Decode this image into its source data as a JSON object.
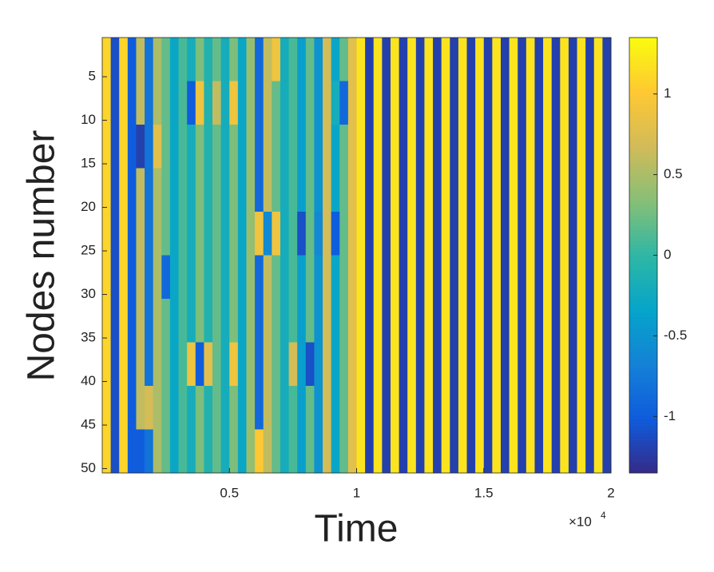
{
  "chart_data": {
    "type": "heatmap",
    "x_label": "Time",
    "y_label": "Nodes number",
    "xlim": [
      0,
      20000
    ],
    "ylim": [
      0.5,
      50.5
    ],
    "xticks": [
      {
        "value": 5000,
        "label": "0.5"
      },
      {
        "value": 10000,
        "label": "1"
      },
      {
        "value": 15000,
        "label": "1.5"
      },
      {
        "value": 20000,
        "label": "2"
      }
    ],
    "x_multiplier": "×10",
    "x_exponent": "4",
    "yticks": [
      5,
      10,
      15,
      20,
      25,
      30,
      35,
      40,
      45,
      50
    ],
    "clim": [
      -1.35,
      1.35
    ],
    "cticks": [
      -1,
      -0.5,
      0,
      0.5,
      1
    ],
    "colormap": [
      "#352a87",
      "#0f5cdd",
      "#1481d6",
      "#06a4ca",
      "#2eb7a4",
      "#87bf77",
      "#d1bb59",
      "#fec832",
      "#f9fb0e"
    ],
    "z": [
      [
        1.1,
        -1.1,
        1.1,
        -1.0,
        0.6,
        -0.8,
        0.5,
        0.2,
        -0.3,
        0.1,
        -0.2,
        0.3,
        -0.1,
        0.2,
        -0.2,
        0.3,
        -0.3,
        0.4,
        -0.9,
        0.6,
        0.9,
        -0.2,
        0.1,
        -0.4,
        0.2,
        -0.5,
        0.7,
        -0.3,
        0.2,
        0.8,
        1.2,
        -1.2,
        1.2,
        -1.2,
        1.2,
        -1.2,
        1.2,
        -1.2,
        1.2,
        -1.2,
        1.2,
        -1.2,
        1.2,
        -1.2,
        1.2,
        -1.2,
        1.2,
        -1.2,
        1.2,
        -1.2,
        1.2,
        -1.2,
        1.2,
        -1.2,
        1.2,
        -1.2,
        1.2,
        -1.2,
        1.2,
        -1.2
      ],
      [
        1.1,
        -1.1,
        1.1,
        -1.0,
        0.6,
        -0.8,
        0.5,
        0.2,
        -0.3,
        0.1,
        -1.0,
        0.9,
        -0.1,
        0.6,
        -0.2,
        0.9,
        -0.3,
        0.4,
        -0.9,
        0.6,
        0.2,
        -0.2,
        0.1,
        -0.4,
        0.2,
        -0.5,
        0.7,
        -0.2,
        -0.9,
        0.8,
        1.2,
        -1.2,
        1.2,
        -1.2,
        1.2,
        -1.2,
        1.2,
        -1.2,
        1.2,
        -1.2,
        1.2,
        -1.2,
        1.2,
        -1.2,
        1.2,
        -1.2,
        1.2,
        -1.2,
        1.2,
        -1.2,
        1.2,
        -1.2,
        1.2,
        -1.2,
        1.2,
        -1.2,
        1.2,
        -1.2,
        1.2,
        -1.2
      ],
      [
        1.1,
        -1.1,
        1.1,
        -1.0,
        -1.2,
        -0.8,
        0.8,
        0.2,
        -0.3,
        0.1,
        -0.2,
        0.3,
        -0.1,
        0.2,
        -0.2,
        0.3,
        -0.3,
        0.4,
        -0.9,
        0.6,
        0.2,
        -0.2,
        0.1,
        -0.4,
        0.2,
        -0.5,
        0.7,
        -0.3,
        0.2,
        0.8,
        1.2,
        -1.2,
        1.2,
        -1.2,
        1.2,
        -1.2,
        1.2,
        -1.2,
        1.2,
        -1.2,
        1.2,
        -1.2,
        1.2,
        -1.2,
        1.2,
        -1.2,
        1.2,
        -1.2,
        1.2,
        -1.2,
        1.2,
        -1.2,
        1.2,
        -1.2,
        1.2,
        -1.2,
        1.2,
        -1.2,
        1.2,
        -1.2
      ],
      [
        1.1,
        -1.1,
        1.1,
        -1.0,
        0.6,
        -0.8,
        0.5,
        0.2,
        -0.3,
        0.1,
        -0.2,
        0.3,
        -0.1,
        0.2,
        -0.2,
        0.3,
        -0.3,
        0.4,
        -0.9,
        0.6,
        0.2,
        -0.2,
        0.1,
        -0.4,
        0.2,
        -0.5,
        0.7,
        -0.3,
        0.2,
        0.8,
        1.2,
        -1.2,
        1.2,
        -1.2,
        1.2,
        -1.2,
        1.2,
        -1.2,
        1.2,
        -1.2,
        1.2,
        -1.2,
        1.2,
        -1.2,
        1.2,
        -1.2,
        1.2,
        -1.2,
        1.2,
        -1.2,
        1.2,
        -1.2,
        1.2,
        -1.2,
        1.2,
        -1.2,
        1.2,
        -1.2,
        1.2,
        -1.2
      ],
      [
        1.1,
        -1.1,
        1.1,
        -1.0,
        0.6,
        -0.8,
        0.5,
        0.2,
        -0.3,
        0.1,
        -0.2,
        0.3,
        -0.1,
        0.2,
        -0.2,
        0.3,
        -0.3,
        0.4,
        0.9,
        -0.6,
        0.9,
        -0.2,
        0.1,
        -1.1,
        0.2,
        -0.6,
        0.7,
        -1.0,
        0.2,
        0.8,
        1.2,
        -1.2,
        1.2,
        -1.2,
        1.2,
        -1.2,
        1.2,
        -1.2,
        1.2,
        -1.2,
        1.2,
        -1.2,
        1.2,
        -1.2,
        1.2,
        -1.2,
        1.2,
        -1.2,
        1.2,
        -1.2,
        1.2,
        -1.2,
        1.2,
        -1.2,
        1.2,
        -1.2,
        1.2,
        -1.2,
        1.2,
        -1.2
      ],
      [
        1.1,
        -1.1,
        1.1,
        -1.0,
        0.6,
        -0.8,
        0.5,
        -0.9,
        -0.3,
        0.1,
        -0.2,
        0.3,
        -0.1,
        0.2,
        -0.2,
        0.3,
        -0.3,
        0.4,
        -0.9,
        0.6,
        0.2,
        -0.2,
        0.1,
        -0.4,
        0.2,
        -0.5,
        0.7,
        -0.3,
        0.2,
        0.8,
        1.2,
        -1.2,
        1.2,
        -1.2,
        1.2,
        -1.2,
        1.2,
        -1.2,
        1.2,
        -1.2,
        1.2,
        -1.2,
        1.2,
        -1.2,
        1.2,
        -1.2,
        1.2,
        -1.2,
        1.2,
        -1.2,
        1.2,
        -1.2,
        1.2,
        -1.2,
        1.2,
        -1.2,
        1.2,
        -1.2,
        1.2,
        -1.2
      ],
      [
        1.1,
        -1.1,
        1.1,
        -1.0,
        0.6,
        -0.8,
        0.5,
        0.2,
        -0.3,
        0.1,
        -0.2,
        0.3,
        -0.1,
        0.2,
        -0.2,
        0.3,
        -0.3,
        0.4,
        -0.9,
        0.6,
        0.2,
        -0.2,
        0.1,
        -0.4,
        0.2,
        -0.5,
        0.7,
        -0.3,
        0.2,
        0.8,
        1.2,
        -1.2,
        1.2,
        -1.2,
        1.2,
        -1.2,
        1.2,
        -1.2,
        1.2,
        -1.2,
        1.2,
        -1.2,
        1.2,
        -1.2,
        1.2,
        -1.2,
        1.2,
        -1.2,
        1.2,
        -1.2,
        1.2,
        -1.2,
        1.2,
        -1.2,
        1.2,
        -1.2,
        1.2,
        -1.2,
        1.2,
        -1.2
      ],
      [
        1.1,
        -1.1,
        1.1,
        -1.0,
        0.6,
        -0.8,
        0.5,
        0.2,
        -0.3,
        0.1,
        0.9,
        -1.0,
        0.8,
        0.2,
        -0.2,
        0.9,
        -0.3,
        0.4,
        -0.9,
        0.6,
        0.2,
        -0.2,
        0.7,
        -0.4,
        -1.1,
        -0.5,
        0.7,
        -0.3,
        0.2,
        0.8,
        1.2,
        -1.2,
        1.2,
        -1.2,
        1.2,
        -1.2,
        1.2,
        -1.2,
        1.2,
        -1.2,
        1.2,
        -1.2,
        1.2,
        -1.2,
        1.2,
        -1.2,
        1.2,
        -1.2,
        1.2,
        -1.2,
        1.2,
        -1.2,
        1.2,
        -1.2,
        1.2,
        -1.2,
        1.2,
        -1.2,
        1.2,
        -1.2
      ],
      [
        1.1,
        -1.1,
        1.1,
        -1.0,
        0.6,
        0.7,
        0.5,
        0.2,
        -0.3,
        0.1,
        -0.2,
        0.3,
        -0.1,
        0.2,
        -0.2,
        0.3,
        -0.3,
        0.4,
        -0.9,
        0.6,
        0.2,
        -0.2,
        0.1,
        -0.4,
        0.2,
        -0.5,
        0.7,
        -0.3,
        0.2,
        0.8,
        1.2,
        -1.2,
        1.2,
        -1.2,
        1.2,
        -1.2,
        1.2,
        -1.2,
        1.2,
        -1.2,
        1.2,
        -1.2,
        1.2,
        -1.2,
        1.2,
        -1.2,
        1.2,
        -1.2,
        1.2,
        -1.2,
        1.2,
        -1.2,
        1.2,
        -1.2,
        1.2,
        -1.2,
        1.2,
        -1.2,
        1.2,
        -1.2
      ],
      [
        1.1,
        -1.1,
        1.1,
        -1.0,
        -1.0,
        -0.8,
        0.5,
        0.2,
        -0.3,
        0.1,
        -0.2,
        0.3,
        -0.1,
        0.2,
        -0.2,
        0.3,
        -0.3,
        0.4,
        1.0,
        0.6,
        0.2,
        -0.2,
        0.1,
        -0.4,
        0.2,
        -0.5,
        0.7,
        -0.3,
        0.2,
        0.8,
        1.2,
        -1.2,
        1.2,
        -1.2,
        1.2,
        -1.2,
        1.2,
        -1.2,
        1.2,
        -1.2,
        1.2,
        -1.2,
        1.2,
        -1.2,
        1.2,
        -1.2,
        1.2,
        -1.2,
        1.2,
        -1.2,
        1.2,
        -1.2,
        1.2,
        -1.2,
        1.2,
        -1.2,
        1.2,
        -1.2,
        1.2,
        -1.2
      ]
    ]
  }
}
